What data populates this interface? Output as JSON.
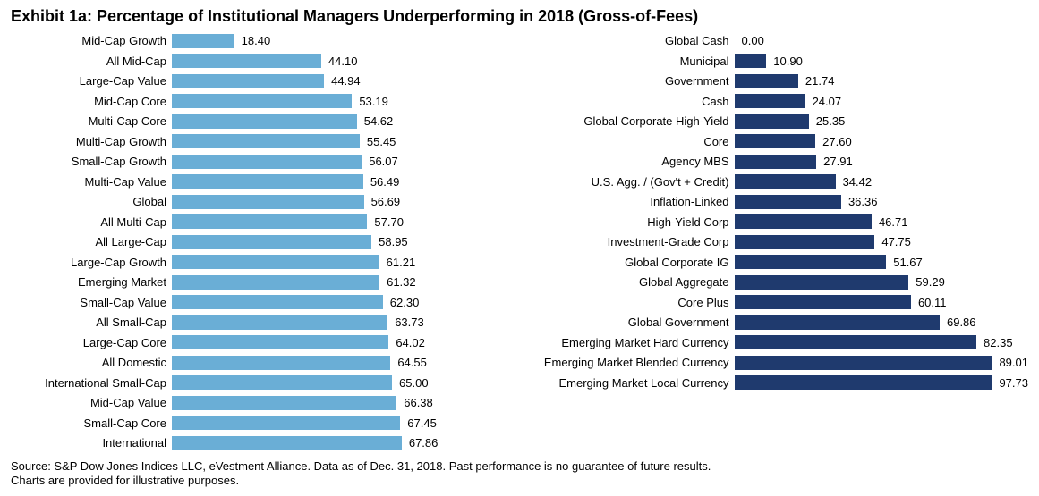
{
  "title": "Exhibit 1a: Percentage of Institutional Managers Underperforming in 2018 (Gross-of-Fees)",
  "source_line1": "Source: S&P Dow Jones Indices LLC, eVestment Alliance.  Data as of Dec. 31, 2018.  Past performance is no guarantee of future results.",
  "source_line2": "Charts are provided for illustrative purposes.",
  "chart_left": {
    "type": "bar-horizontal",
    "bar_color": "#6aaed6",
    "text_color": "#000000",
    "font_size": 13,
    "xlim": [
      0,
      100
    ],
    "rows": [
      {
        "label": "Mid-Cap Growth",
        "value": 18.4
      },
      {
        "label": "All Mid-Cap",
        "value": 44.1
      },
      {
        "label": "Large-Cap Value",
        "value": 44.94
      },
      {
        "label": "Mid-Cap Core",
        "value": 53.19
      },
      {
        "label": "Multi-Cap Core",
        "value": 54.62
      },
      {
        "label": "Multi-Cap Growth",
        "value": 55.45
      },
      {
        "label": "Small-Cap Growth",
        "value": 56.07
      },
      {
        "label": "Multi-Cap Value",
        "value": 56.49
      },
      {
        "label": "Global",
        "value": 56.69
      },
      {
        "label": "All Multi-Cap",
        "value": 57.7
      },
      {
        "label": "All Large-Cap",
        "value": 58.95
      },
      {
        "label": "Large-Cap Growth",
        "value": 61.21
      },
      {
        "label": "Emerging Market",
        "value": 61.32
      },
      {
        "label": "Small-Cap Value",
        "value": 62.3
      },
      {
        "label": "All Small-Cap",
        "value": 63.73
      },
      {
        "label": "Large-Cap Core",
        "value": 64.02
      },
      {
        "label": "All Domestic",
        "value": 64.55
      },
      {
        "label": "International Small-Cap",
        "value": 65.0
      },
      {
        "label": "Mid-Cap Value",
        "value": 66.38
      },
      {
        "label": "Small-Cap Core",
        "value": 67.45
      },
      {
        "label": "International",
        "value": 67.86
      }
    ]
  },
  "chart_right": {
    "type": "bar-horizontal",
    "bar_color": "#1f3a6e",
    "text_color": "#000000",
    "font_size": 13,
    "xlim": [
      0,
      100
    ],
    "rows": [
      {
        "label": "Global Cash",
        "value": 0.0
      },
      {
        "label": "Municipal",
        "value": 10.9
      },
      {
        "label": "Government",
        "value": 21.74
      },
      {
        "label": "Cash",
        "value": 24.07
      },
      {
        "label": "Global Corporate High-Yield",
        "value": 25.35
      },
      {
        "label": "Core",
        "value": 27.6
      },
      {
        "label": "Agency MBS",
        "value": 27.91
      },
      {
        "label": "U.S. Agg. / (Gov't + Credit)",
        "value": 34.42
      },
      {
        "label": "Inflation-Linked",
        "value": 36.36
      },
      {
        "label": "High-Yield Corp",
        "value": 46.71
      },
      {
        "label": "Investment-Grade Corp",
        "value": 47.75
      },
      {
        "label": "Global Corporate IG",
        "value": 51.67
      },
      {
        "label": "Global Aggregate",
        "value": 59.29
      },
      {
        "label": "Core Plus",
        "value": 60.11
      },
      {
        "label": "Global Government",
        "value": 69.86
      },
      {
        "label": "Emerging Market Hard Currency",
        "value": 82.35
      },
      {
        "label": "Emerging Market Blended Currency",
        "value": 89.01
      },
      {
        "label": "Emerging Market Local Currency",
        "value": 97.73
      }
    ]
  }
}
